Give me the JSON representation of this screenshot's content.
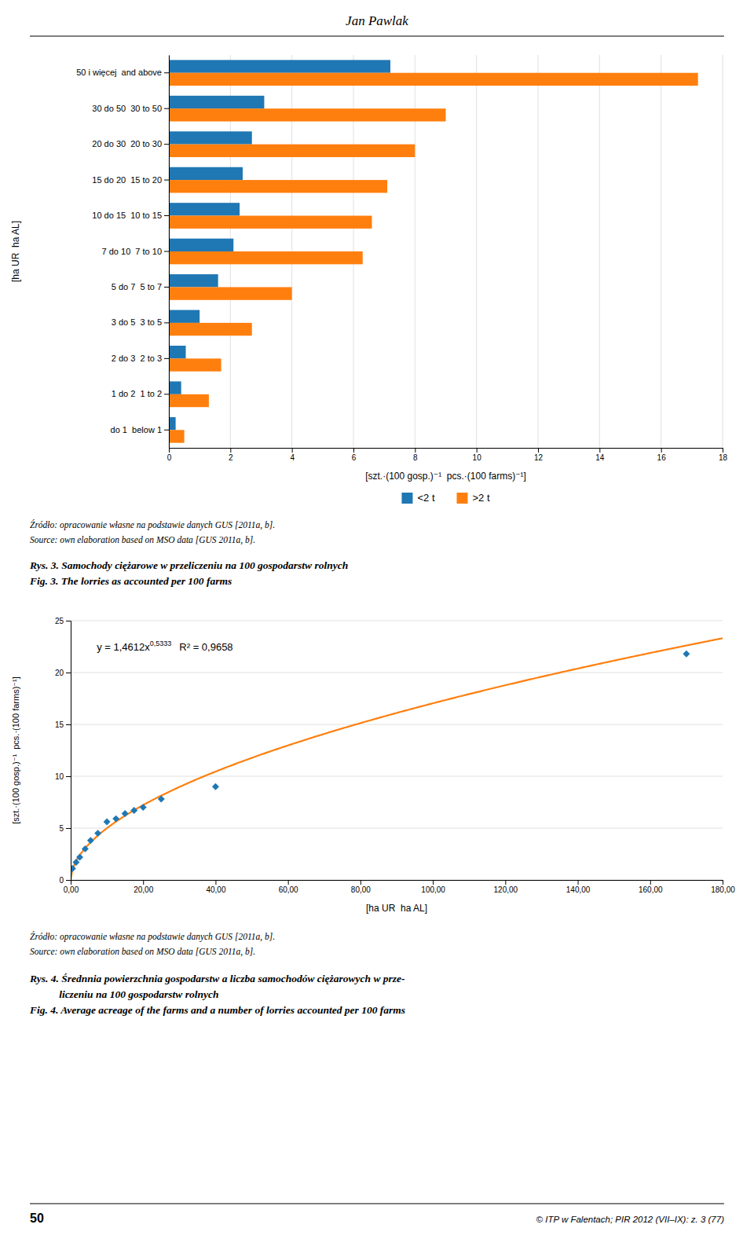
{
  "page_title": "Jan Pawlak",
  "chart_data": [
    {
      "type": "bar",
      "orientation": "horizontal",
      "title": "Rys. 3. Samochody ciężarowe w przeliczeniu na 100 gospodarstw rolnych",
      "subtitle": "Fig. 3. The lorries as accounted per 100 farms",
      "source": [
        "Źródło: opracowanie własne na podstawie danych GUS [2011a, b].",
        "Source: own elaboration based on MSO data [GUS 2011a, b]."
      ],
      "categories": [
        "50 i więcej  and above",
        "30 do 50  30 to 50",
        "20 do 30  20 to 30",
        "15 do 20  15 to 20",
        "10 do 15  10 to 15",
        "7 do 10  7 to 10",
        "5 do 7  5 to 7",
        "3 do 5  3 to 5",
        "2 do 3  2 to 3",
        "1 do 2  1 to 2",
        "do 1  below 1"
      ],
      "series": [
        {
          "name": "<2 t",
          "values": [
            7.2,
            3.1,
            2.7,
            2.4,
            2.3,
            2.1,
            1.6,
            1.0,
            0.55,
            0.4,
            0.22
          ]
        },
        {
          "name": ">2 t",
          "values": [
            17.2,
            9.0,
            8.0,
            7.1,
            6.6,
            6.3,
            4.0,
            2.7,
            1.7,
            1.3,
            0.5
          ]
        }
      ],
      "x_label": "[szt.·(100 gosp.)⁻¹  pcs.·(100 farms)⁻¹]",
      "y_label": "[ha UR  ha AL]",
      "xlim": [
        0,
        18
      ],
      "xticks": [
        0,
        2,
        4,
        6,
        8,
        10,
        12,
        14,
        16,
        18
      ],
      "grid": true,
      "legend": "bottom"
    },
    {
      "type": "scatter",
      "title": [
        "Rys. 4. Średnnia powierzchnia gospodarstw a liczba samochodów ciężarowych w prze-",
        "           liczeniu na 100 gospodarstw rolnych"
      ],
      "subtitle": "Fig. 4. Average acreage of the farms and a number of lorries accounted per 100 farms",
      "source": [
        "Źródło: opracowanie własne na podstawie danych GUS [2011a, b].",
        "Source: own elaboration based on MSO data [GUS 2011a, b]."
      ],
      "x": [
        0.5,
        1.5,
        2.5,
        4.0,
        5.5,
        7.5,
        10.0,
        12.5,
        15.0,
        17.5,
        20.0,
        25.0,
        40.0,
        170.0
      ],
      "values": [
        1.1,
        1.7,
        2.2,
        3.0,
        3.8,
        4.5,
        5.6,
        5.9,
        6.4,
        6.7,
        7.0,
        7.8,
        9.0,
        21.8
      ],
      "marker": "diamond",
      "fit": {
        "a": 1.4612,
        "b": 0.5333
      },
      "annotation": {
        "text": "y = 1,4612x",
        "superscript": "0,5333",
        "after": "R² = 0,9658"
      },
      "x_label": "[ha UR  ha AL]",
      "y_label": "[szt.·(100 gosp.)⁻¹  pcs.·(100 farms)⁻¹]",
      "xlim": [
        0,
        180
      ],
      "xticks": [
        {
          "value": 0.0,
          "label": "0,00"
        },
        {
          "value": 20.0,
          "label": "20,00"
        },
        {
          "value": 40.0,
          "label": "40,00"
        },
        {
          "value": 60.0,
          "label": "60,00"
        },
        {
          "value": 80.0,
          "label": "80,00"
        },
        {
          "value": 100.0,
          "label": "100,00"
        },
        {
          "value": 120.0,
          "label": "120,00"
        },
        {
          "value": 140.0,
          "label": "140,00"
        },
        {
          "value": 160.0,
          "label": "160,00"
        },
        {
          "value": 180.0,
          "label": "180,00"
        }
      ],
      "ylim": [
        0,
        25
      ],
      "yticks": [
        0,
        5,
        10,
        15,
        20,
        25
      ],
      "grid": true
    }
  ],
  "footer": {
    "left": "50",
    "right": "© ITP w Falentach; PIR 2012 (VII–IX): z. 3 (77)"
  }
}
